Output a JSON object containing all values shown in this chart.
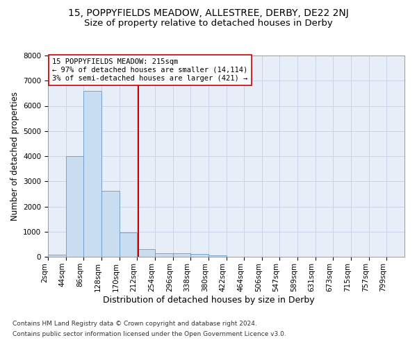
{
  "title_line1": "15, POPPYFIELDS MEADOW, ALLESTREE, DERBY, DE22 2NJ",
  "title_line2": "Size of property relative to detached houses in Derby",
  "xlabel": "Distribution of detached houses by size in Derby",
  "ylabel": "Number of detached properties",
  "footnote1": "Contains HM Land Registry data © Crown copyright and database right 2024.",
  "footnote2": "Contains public sector information licensed under the Open Government Licence v3.0.",
  "annotation_line1": "15 POPPYFIELDS MEADOW: 215sqm",
  "annotation_line2": "← 97% of detached houses are smaller (14,114)",
  "annotation_line3": "3% of semi-detached houses are larger (421) →",
  "bar_edges": [
    2,
    44,
    86,
    128,
    170,
    212,
    254,
    296,
    338,
    380,
    422,
    464,
    506,
    547,
    589,
    631,
    673,
    715,
    757,
    799,
    841
  ],
  "bar_heights": [
    80,
    4000,
    6580,
    2620,
    960,
    310,
    130,
    130,
    100,
    50,
    0,
    0,
    0,
    0,
    0,
    0,
    0,
    0,
    0,
    0
  ],
  "bar_color": "#c9ddf0",
  "bar_edge_color": "#6699cc",
  "vline_x": 215,
  "vline_color": "#cc0000",
  "ylim": [
    0,
    8000
  ],
  "yticks": [
    0,
    1000,
    2000,
    3000,
    4000,
    5000,
    6000,
    7000,
    8000
  ],
  "grid_color": "#c8d4e8",
  "background_color": "#e8eef8",
  "annotation_box_facecolor": "#ffffff",
  "annotation_box_edgecolor": "#cc0000",
  "title1_fontsize": 10,
  "title2_fontsize": 9.5,
  "ylabel_fontsize": 8.5,
  "xlabel_fontsize": 9,
  "tick_fontsize": 7.5,
  "annotation_fontsize": 7.5,
  "footnote_fontsize": 6.5
}
